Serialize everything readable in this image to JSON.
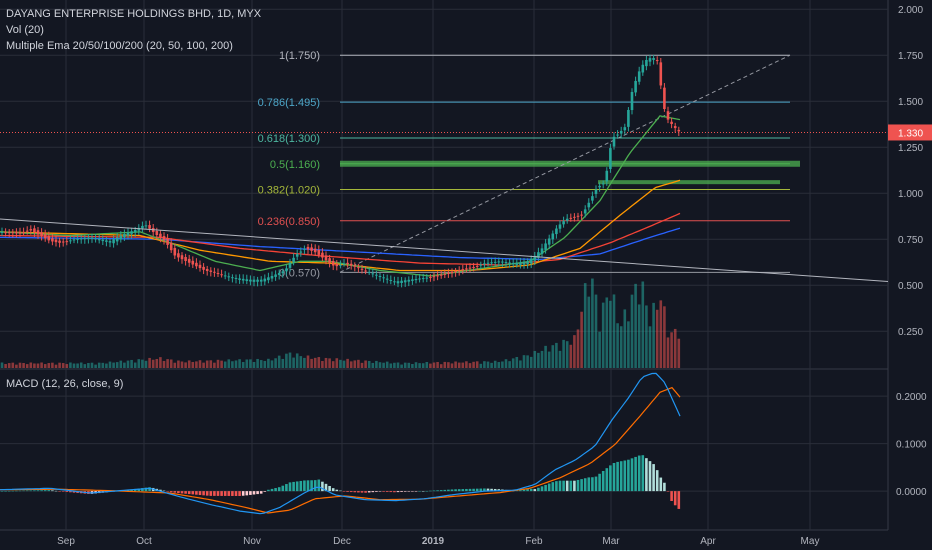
{
  "legend": {
    "symbol": "DAYANG ENTERPRISE HOLDINGS BHD, 1D, MYX",
    "volume": "Vol (20)",
    "ema": "Multiple Ema 20/50/100/200 (20, 50, 100, 200)",
    "macd": "MACD (12, 26, close, 9)"
  },
  "colors": {
    "background": "#131722",
    "up": "#26a69a",
    "down": "#ef5350",
    "ema20": "#4caf50",
    "ema50": "#ff9800",
    "ema100": "#f44336",
    "ema200": "#2962ff",
    "macd_line": "#2196f3",
    "signal_line": "#ff6d00",
    "trendline": "#b2b5be",
    "grid": "#2a2e39"
  },
  "chart_data": [
    {
      "type": "candlestick",
      "title": "DAYANG ENTERPRISE HOLDINGS BHD, 1D, MYX",
      "y_ticks": [
        "2.000",
        "1.750",
        "1.500",
        "1.250",
        "1.000",
        "0.750",
        "0.500",
        "0.250"
      ],
      "ylim": [
        0.05,
        2.05
      ],
      "x_ticks": [
        "Sep",
        "Oct",
        "Nov",
        "Dec",
        "2019",
        "Feb",
        "Mar",
        "Apr",
        "May"
      ],
      "last_price": "1.330",
      "grid": true,
      "fib_levels": [
        {
          "label": "1(1.750)",
          "value": 1.75,
          "color": "#b2b5be"
        },
        {
          "label": "0.786(1.495)",
          "value": 1.495,
          "color": "#4da6c8"
        },
        {
          "label": "0.618(1.300)",
          "value": 1.3,
          "color": "#4db6a0"
        },
        {
          "label": "0.5(1.160)",
          "value": 1.16,
          "color": "#4caf50"
        },
        {
          "label": "0.382(1.020)",
          "value": 1.02,
          "color": "#a5b83a"
        },
        {
          "label": "0.236(0.850)",
          "value": 0.85,
          "color": "#e05050"
        },
        {
          "label": "0(0.570)",
          "value": 0.57,
          "color": "#9598a1"
        }
      ],
      "price_anchors": [
        [
          0,
          0.79
        ],
        [
          20,
          0.78
        ],
        [
          30,
          0.8
        ],
        [
          40,
          0.77
        ],
        [
          50,
          0.74
        ],
        [
          60,
          0.73
        ],
        [
          75,
          0.75
        ],
        [
          90,
          0.76
        ],
        [
          110,
          0.74
        ],
        [
          125,
          0.78
        ],
        [
          135,
          0.8
        ],
        [
          145,
          0.83
        ],
        [
          155,
          0.78
        ],
        [
          165,
          0.74
        ],
        [
          175,
          0.66
        ],
        [
          190,
          0.62
        ],
        [
          205,
          0.58
        ],
        [
          220,
          0.56
        ],
        [
          235,
          0.54
        ],
        [
          250,
          0.53
        ],
        [
          262,
          0.53
        ],
        [
          272,
          0.55
        ],
        [
          285,
          0.58
        ],
        [
          295,
          0.66
        ],
        [
          305,
          0.7
        ],
        [
          315,
          0.68
        ],
        [
          325,
          0.64
        ],
        [
          335,
          0.6
        ],
        [
          345,
          0.62
        ],
        [
          355,
          0.6
        ],
        [
          365,
          0.58
        ],
        [
          380,
          0.55
        ],
        [
          395,
          0.52
        ],
        [
          410,
          0.53
        ],
        [
          425,
          0.54
        ],
        [
          440,
          0.55
        ],
        [
          455,
          0.57
        ],
        [
          470,
          0.59
        ],
        [
          485,
          0.62
        ],
        [
          500,
          0.63
        ],
        [
          515,
          0.62
        ],
        [
          528,
          0.63
        ],
        [
          535,
          0.66
        ],
        [
          542,
          0.7
        ],
        [
          550,
          0.76
        ],
        [
          558,
          0.82
        ],
        [
          566,
          0.86
        ],
        [
          575,
          0.87
        ],
        [
          582,
          0.88
        ],
        [
          590,
          0.96
        ],
        [
          597,
          1.03
        ],
        [
          605,
          1.06
        ],
        [
          612,
          1.3
        ],
        [
          618,
          1.32
        ],
        [
          625,
          1.36
        ],
        [
          632,
          1.55
        ],
        [
          638,
          1.65
        ],
        [
          645,
          1.72
        ],
        [
          652,
          1.74
        ],
        [
          658,
          1.72
        ],
        [
          663,
          1.48
        ],
        [
          668,
          1.4
        ],
        [
          674,
          1.36
        ],
        [
          680,
          1.33
        ]
      ],
      "volume_anchors": [
        [
          0,
          0.03
        ],
        [
          100,
          0.03
        ],
        [
          160,
          0.06
        ],
        [
          180,
          0.04
        ],
        [
          250,
          0.05
        ],
        [
          270,
          0.05
        ],
        [
          290,
          0.09
        ],
        [
          305,
          0.07
        ],
        [
          320,
          0.06
        ],
        [
          400,
          0.03
        ],
        [
          500,
          0.04
        ],
        [
          530,
          0.08
        ],
        [
          545,
          0.12
        ],
        [
          560,
          0.15
        ],
        [
          575,
          0.18
        ],
        [
          590,
          0.6
        ],
        [
          600,
          0.3
        ],
        [
          610,
          0.5
        ],
        [
          620,
          0.25
        ],
        [
          630,
          0.4
        ],
        [
          640,
          0.55
        ],
        [
          650,
          0.3
        ],
        [
          660,
          0.45
        ],
        [
          670,
          0.2
        ],
        [
          680,
          0.25
        ]
      ],
      "macd_ticks": [
        "0.2000",
        "0.1000",
        "0.0000"
      ],
      "macd_ylim": [
        -0.065,
        0.255
      ],
      "macd_anchors": [
        [
          0,
          0.003
        ],
        [
          50,
          0.006
        ],
        [
          90,
          -0.004
        ],
        [
          150,
          0.006
        ],
        [
          180,
          -0.012
        ],
        [
          210,
          -0.028
        ],
        [
          240,
          -0.042
        ],
        [
          262,
          -0.048
        ],
        [
          280,
          -0.034
        ],
        [
          305,
          -0.003
        ],
        [
          318,
          0.01
        ],
        [
          335,
          -0.008
        ],
        [
          365,
          -0.018
        ],
        [
          395,
          -0.02
        ],
        [
          425,
          -0.016
        ],
        [
          455,
          -0.007
        ],
        [
          485,
          0.0
        ],
        [
          515,
          0.002
        ],
        [
          535,
          0.014
        ],
        [
          555,
          0.045
        ],
        [
          575,
          0.065
        ],
        [
          595,
          0.095
        ],
        [
          612,
          0.15
        ],
        [
          628,
          0.195
        ],
        [
          642,
          0.24
        ],
        [
          655,
          0.25
        ],
        [
          665,
          0.228
        ],
        [
          672,
          0.195
        ],
        [
          680,
          0.158
        ]
      ],
      "signal_anchors": [
        [
          0,
          0.003
        ],
        [
          60,
          0.004
        ],
        [
          110,
          0.001
        ],
        [
          170,
          -0.004
        ],
        [
          210,
          -0.018
        ],
        [
          245,
          -0.034
        ],
        [
          268,
          -0.046
        ],
        [
          290,
          -0.04
        ],
        [
          315,
          -0.016
        ],
        [
          345,
          -0.01
        ],
        [
          380,
          -0.018
        ],
        [
          420,
          -0.017
        ],
        [
          460,
          -0.01
        ],
        [
          500,
          -0.003
        ],
        [
          530,
          0.006
        ],
        [
          560,
          0.028
        ],
        [
          590,
          0.058
        ],
        [
          615,
          0.098
        ],
        [
          640,
          0.158
        ],
        [
          660,
          0.208
        ],
        [
          672,
          0.218
        ],
        [
          680,
          0.198
        ]
      ],
      "ema20_anchors": [
        [
          0,
          0.79
        ],
        [
          70,
          0.77
        ],
        [
          140,
          0.79
        ],
        [
          175,
          0.72
        ],
        [
          215,
          0.63
        ],
        [
          260,
          0.58
        ],
        [
          300,
          0.63
        ],
        [
          330,
          0.63
        ],
        [
          380,
          0.58
        ],
        [
          430,
          0.55
        ],
        [
          480,
          0.59
        ],
        [
          530,
          0.63
        ],
        [
          565,
          0.76
        ],
        [
          600,
          0.96
        ],
        [
          630,
          1.22
        ],
        [
          660,
          1.42
        ],
        [
          680,
          1.4
        ]
      ],
      "ema50_anchors": [
        [
          0,
          0.79
        ],
        [
          140,
          0.77
        ],
        [
          200,
          0.69
        ],
        [
          270,
          0.63
        ],
        [
          330,
          0.62
        ],
        [
          400,
          0.58
        ],
        [
          470,
          0.58
        ],
        [
          530,
          0.61
        ],
        [
          580,
          0.7
        ],
        [
          620,
          0.88
        ],
        [
          655,
          1.03
        ],
        [
          680,
          1.07
        ]
      ],
      "ema100_anchors": [
        [
          0,
          0.77
        ],
        [
          160,
          0.76
        ],
        [
          240,
          0.7
        ],
        [
          320,
          0.66
        ],
        [
          420,
          0.62
        ],
        [
          500,
          0.61
        ],
        [
          560,
          0.64
        ],
        [
          610,
          0.73
        ],
        [
          650,
          0.82
        ],
        [
          680,
          0.89
        ]
      ],
      "ema200_anchors": [
        [
          0,
          0.76
        ],
        [
          160,
          0.75
        ],
        [
          260,
          0.71
        ],
        [
          360,
          0.68
        ],
        [
          460,
          0.65
        ],
        [
          540,
          0.64
        ],
        [
          600,
          0.67
        ],
        [
          650,
          0.76
        ],
        [
          680,
          0.81
        ]
      ]
    }
  ]
}
